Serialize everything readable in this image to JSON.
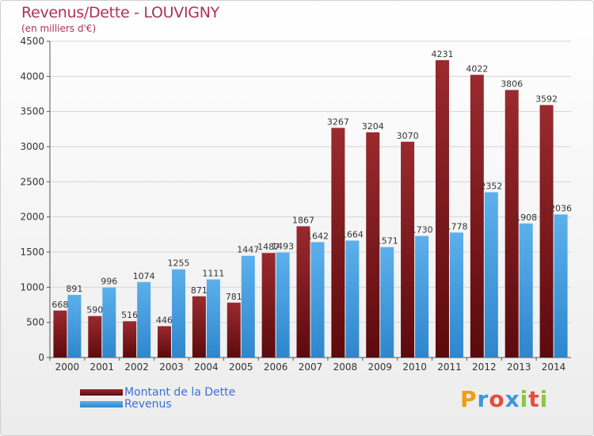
{
  "chart_data": {
    "type": "bar",
    "title": "Revenus/Dette - LOUVIGNY",
    "subtitle": "(en milliers d'€)",
    "categories": [
      "2000",
      "2001",
      "2002",
      "2003",
      "2004",
      "2005",
      "2006",
      "2007",
      "2008",
      "2009",
      "2010",
      "2011",
      "2012",
      "2013",
      "2014"
    ],
    "series": [
      {
        "name": "Montant de la Dette",
        "color": "#7a1418",
        "values": [
          668,
          590,
          516,
          446,
          871,
          781,
          1487,
          1867,
          3267,
          3204,
          3070,
          4231,
          4022,
          3806,
          3592
        ]
      },
      {
        "name": "Revenus",
        "color": "#3d97dc",
        "values": [
          891,
          996,
          1074,
          1255,
          1111,
          1447,
          1493,
          1642,
          1664,
          1571,
          1730,
          1778,
          2352,
          1908,
          2036
        ]
      }
    ],
    "ylim": [
      0,
      4500
    ],
    "yticks": [
      0,
      500,
      1000,
      1500,
      2000,
      2500,
      3000,
      3500,
      4000,
      4500
    ],
    "grid": true,
    "legend": "bottom-left"
  },
  "brand": {
    "letters": [
      "P",
      "r",
      "o",
      "x",
      "i",
      "t",
      "i"
    ],
    "colors": [
      "#f39c12",
      "#3d97dc",
      "#e74c3c",
      "#3d97dc",
      "#8cc63f",
      "#e74c3c",
      "#8cc63f"
    ]
  }
}
